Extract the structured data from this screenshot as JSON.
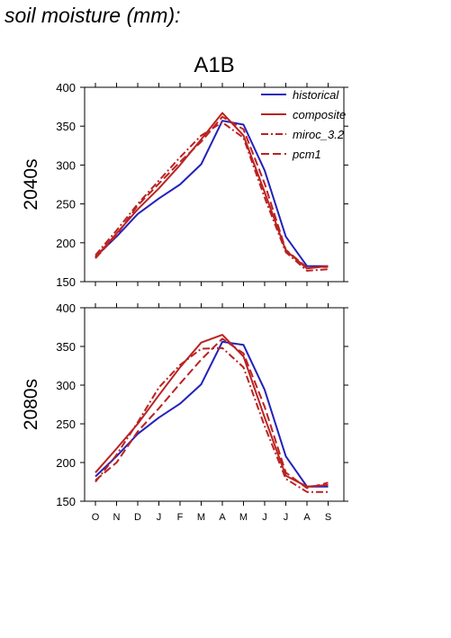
{
  "title": "soil moisture (mm):",
  "colors": {
    "historical": "#2222bb",
    "future": "#bb2222"
  },
  "chart_data": {
    "type": "line",
    "scenario": "A1B",
    "x": [
      "O",
      "N",
      "D",
      "J",
      "F",
      "M",
      "A",
      "M",
      "J",
      "J",
      "A",
      "S"
    ],
    "ylim": [
      150,
      400
    ],
    "yticks": [
      150,
      200,
      250,
      300,
      350,
      400
    ],
    "legend": {
      "placement": "top-right",
      "entries": [
        {
          "name": "historical",
          "dash": "solid"
        },
        {
          "name": "composite",
          "dash": "solid"
        },
        {
          "name": "miroc_3.2",
          "dash": "dashdot"
        },
        {
          "name": "pcm1",
          "dash": "dashed"
        }
      ]
    },
    "panels": [
      {
        "label": "2040s",
        "series": [
          {
            "name": "historical",
            "color": "#2222bb",
            "dash": "solid",
            "values": [
              182,
              208,
              237,
              257,
              275,
              301,
              357,
              352,
              293,
              208,
              170,
              170
            ]
          },
          {
            "name": "composite",
            "color": "#bb2222",
            "dash": "solid",
            "values": [
              181,
              212,
              243,
              270,
              300,
              333,
              367,
              338,
              265,
              190,
              167,
              170
            ]
          },
          {
            "name": "miroc_3.2",
            "color": "#bb2222",
            "dash": "dashdot",
            "values": [
              184,
              216,
              250,
              280,
              310,
              338,
              355,
              335,
              258,
              188,
              164,
              166
            ]
          },
          {
            "name": "pcm1",
            "color": "#bb2222",
            "dash": "dashed",
            "values": [
              180,
              210,
              248,
              276,
              304,
              330,
              362,
              346,
              276,
              191,
              168,
              169
            ]
          }
        ]
      },
      {
        "label": "2080s",
        "series": [
          {
            "name": "historical",
            "color": "#2222bb",
            "dash": "solid",
            "values": [
              182,
              208,
              237,
              258,
              276,
              301,
              356,
              352,
              294,
              208,
              169,
              169
            ]
          },
          {
            "name": "composite",
            "color": "#bb2222",
            "dash": "solid",
            "values": [
              187,
              218,
              250,
              287,
              323,
              355,
              365,
              337,
              258,
              183,
              169,
              171
            ]
          },
          {
            "name": "miroc_3.2",
            "color": "#bb2222",
            "dash": "dashdot",
            "values": [
              175,
              210,
              252,
              297,
              326,
              347,
              348,
              323,
              247,
              179,
              162,
              162
            ]
          },
          {
            "name": "pcm1",
            "color": "#bb2222",
            "dash": "dashed",
            "values": [
              177,
              200,
              240,
              270,
              302,
              333,
              360,
              341,
              272,
              187,
              167,
              174
            ]
          }
        ]
      }
    ]
  }
}
